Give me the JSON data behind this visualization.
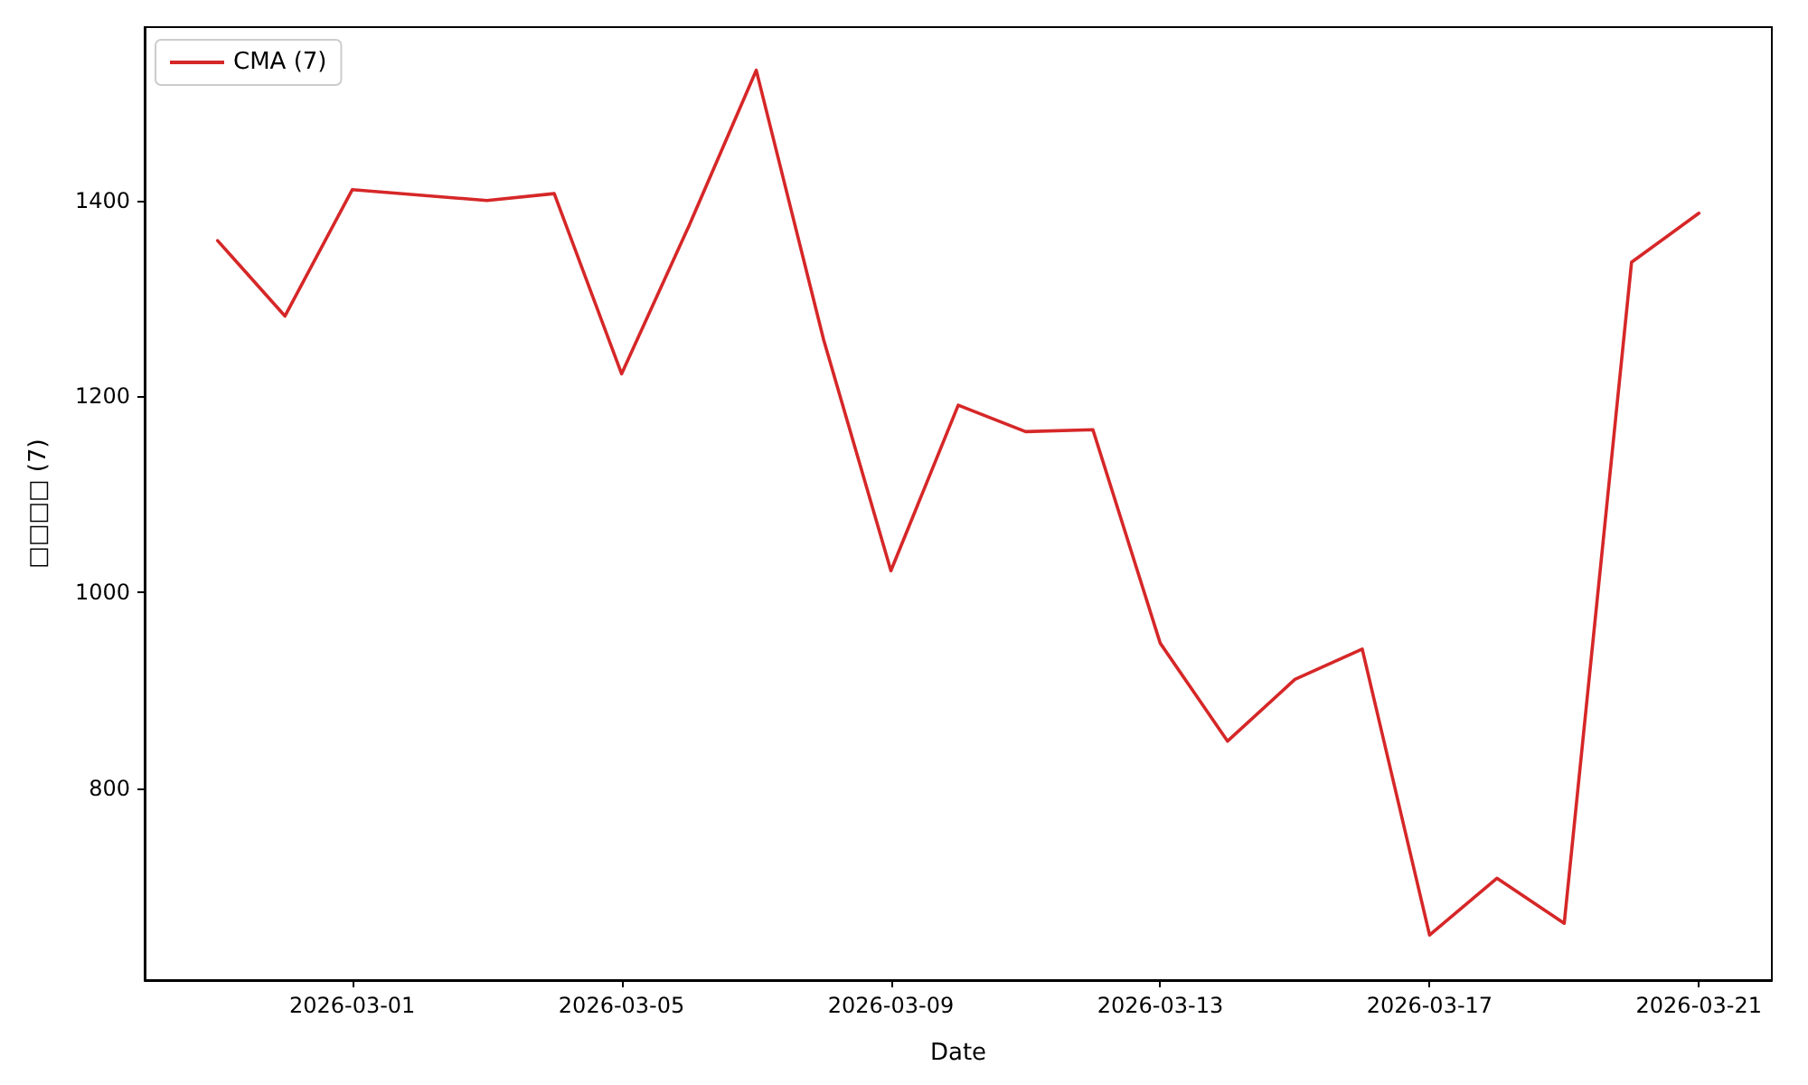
{
  "chart_data": {
    "type": "line",
    "xlabel": "Date",
    "ylabel": "□□□□ (7)",
    "x": [
      "2026-02-27",
      "2026-02-28",
      "2026-03-01",
      "2026-03-03",
      "2026-03-04",
      "2026-03-05",
      "2026-03-06",
      "2026-03-07",
      "2026-03-08",
      "2026-03-09",
      "2026-03-10",
      "2026-03-11",
      "2026-03-12",
      "2026-03-13",
      "2026-03-14",
      "2026-03-15",
      "2026-03-16",
      "2026-03-17",
      "2026-03-18",
      "2026-03-19",
      "2026-03-20",
      "2026-03-21"
    ],
    "series": [
      {
        "name": "CMA (7)",
        "color": "#d62728",
        "values": [
          1359,
          1282,
          1411,
          1400,
          1407,
          1223,
          1374,
          1533,
          1258,
          1022,
          1191,
          1164,
          1166,
          948,
          848,
          911,
          942,
          650,
          708,
          662,
          1337,
          1387
        ]
      }
    ],
    "xlim": [
      "2026-02-25T22:00",
      "2026-03-22T02:00"
    ],
    "xticks": [
      "2026-03-01",
      "2026-03-05",
      "2026-03-09",
      "2026-03-13",
      "2026-03-17",
      "2026-03-21"
    ],
    "ylim": [
      604,
      1577
    ],
    "yticks": [
      800,
      1000,
      1200,
      1400
    ],
    "grid": false,
    "legend": "top left",
    "marker": "none",
    "line_style": "solid"
  }
}
